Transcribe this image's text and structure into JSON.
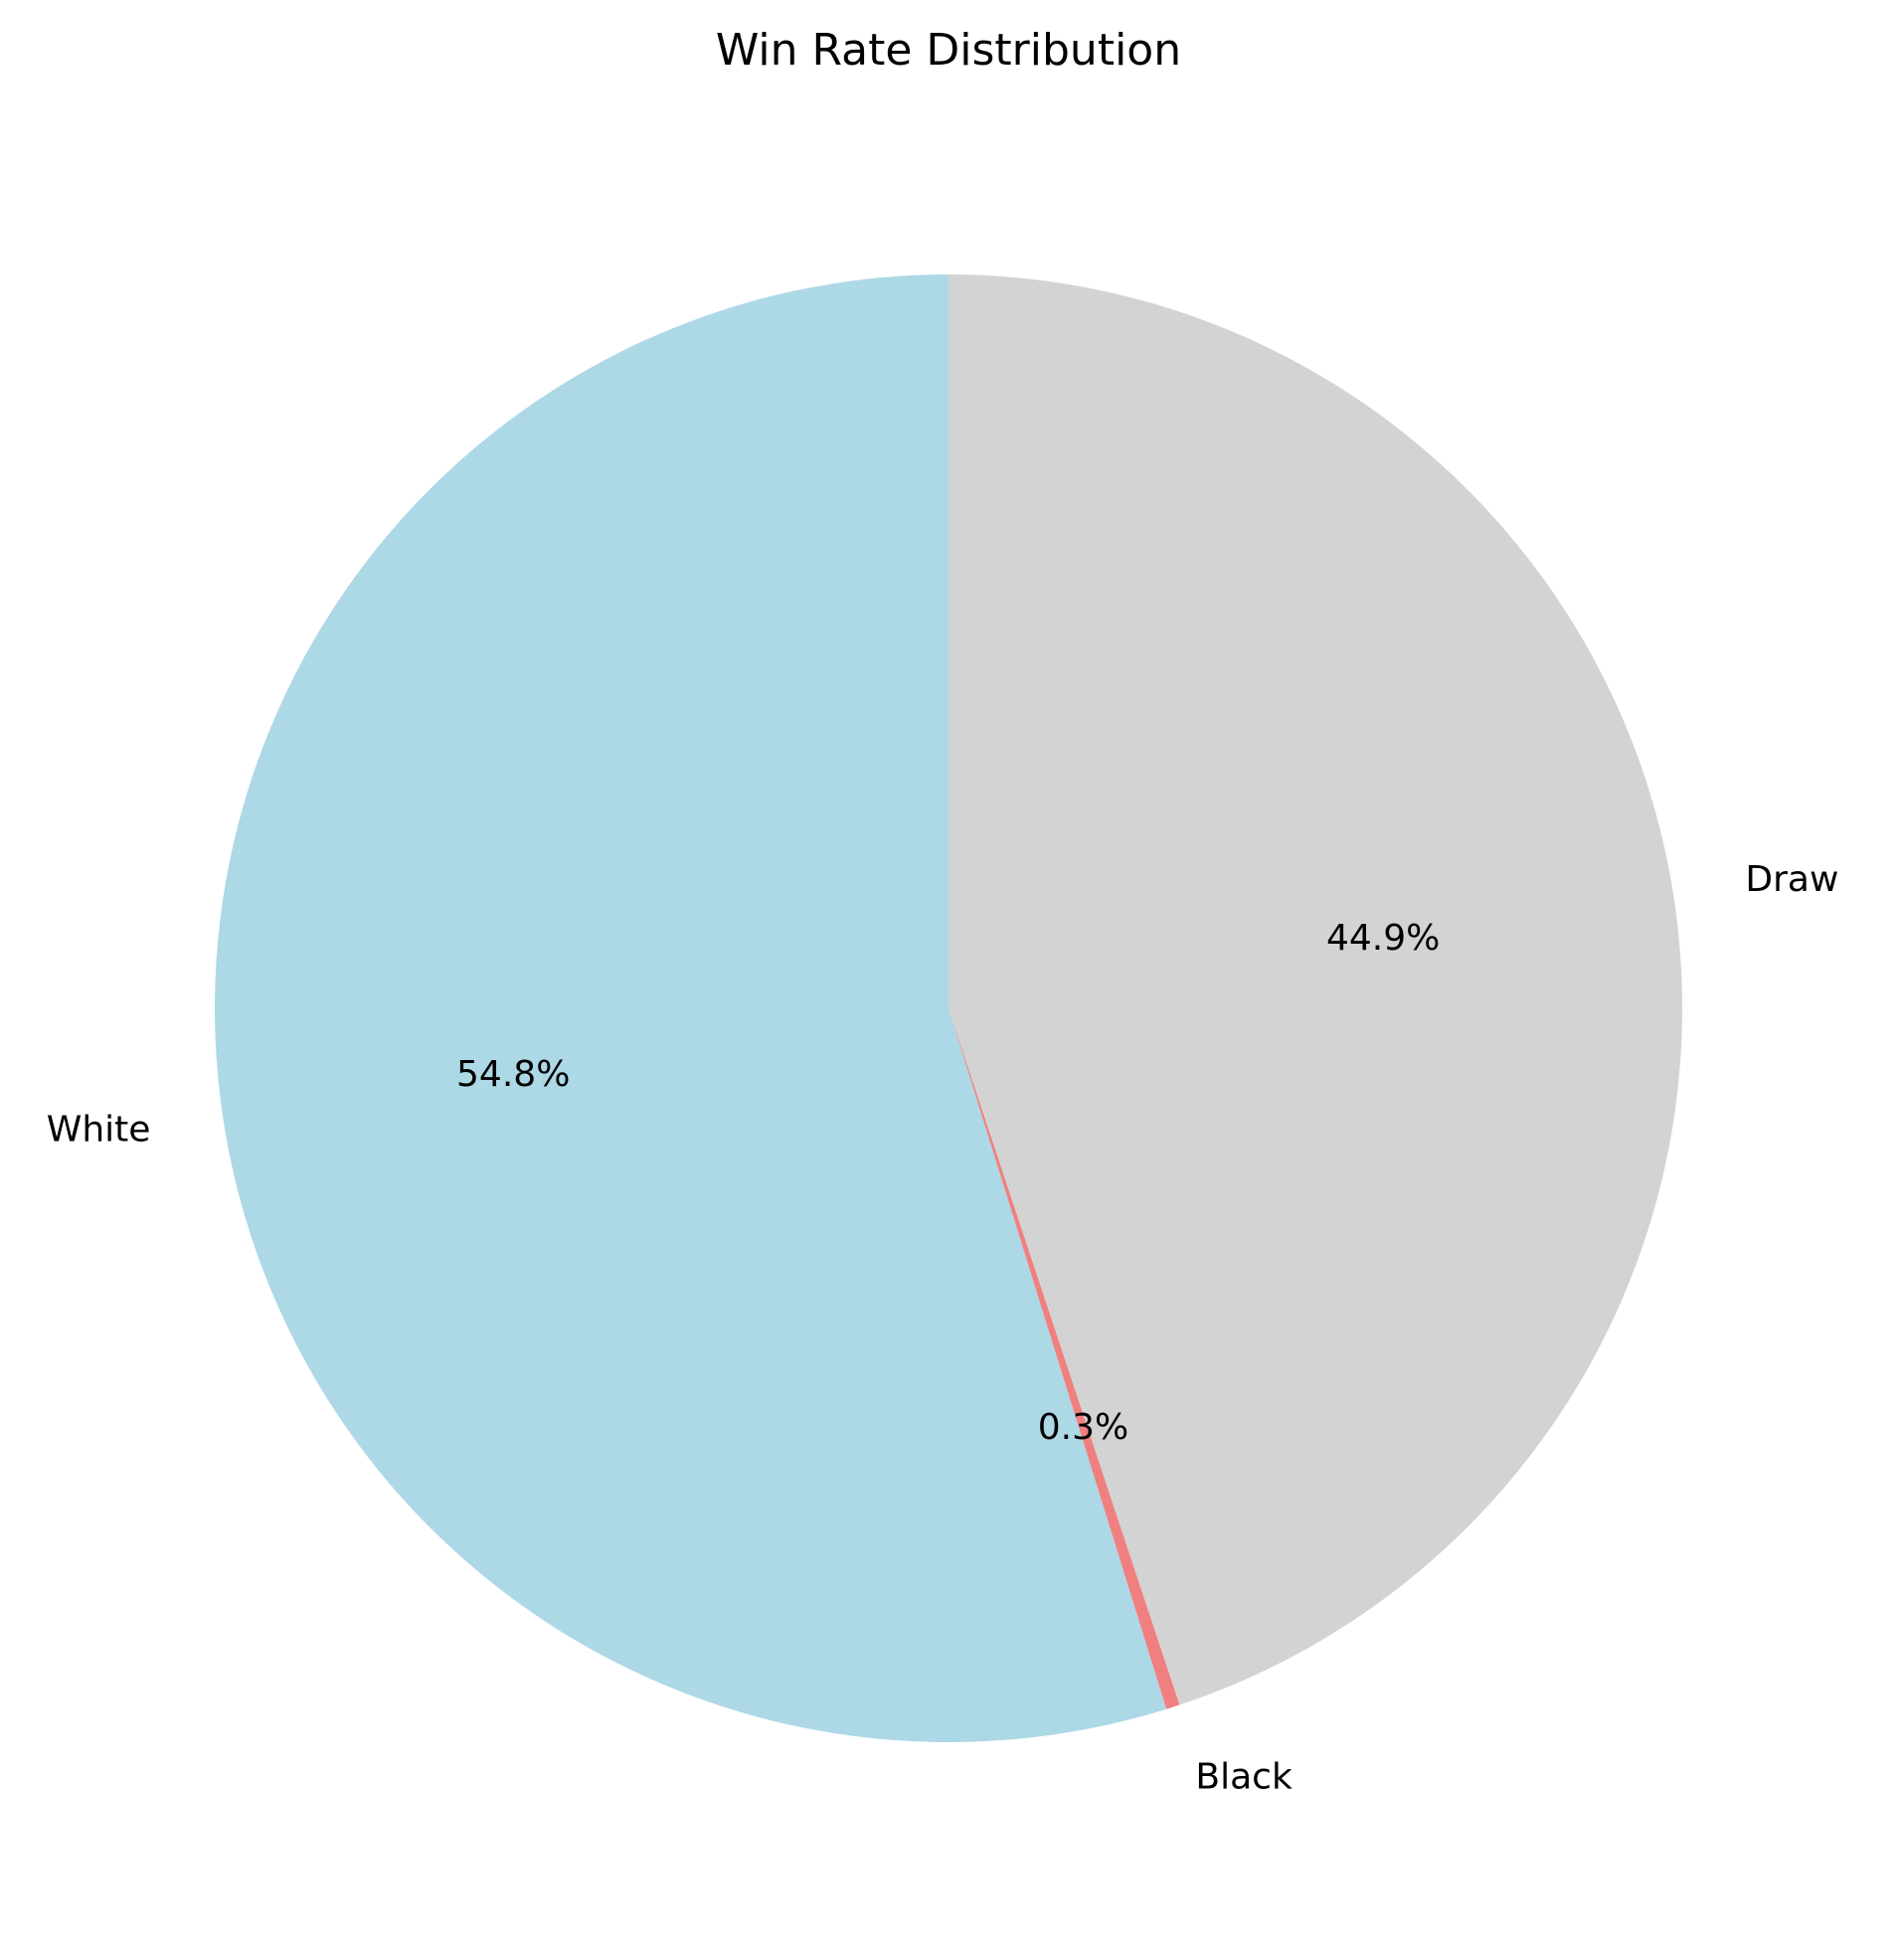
{
  "chart_data": {
    "type": "pie",
    "title": "Win Rate Distribution",
    "categories": [
      "White",
      "Black",
      "Draw"
    ],
    "values": [
      54.8,
      0.3,
      44.9
    ],
    "percent_labels": [
      "54.8%",
      "0.3%",
      "44.9%"
    ],
    "colors": [
      "#add8e6",
      "#f08080",
      "#d3d3d3"
    ],
    "start_angle_deg": 90,
    "direction": "counterclockwise",
    "legend": "none"
  }
}
